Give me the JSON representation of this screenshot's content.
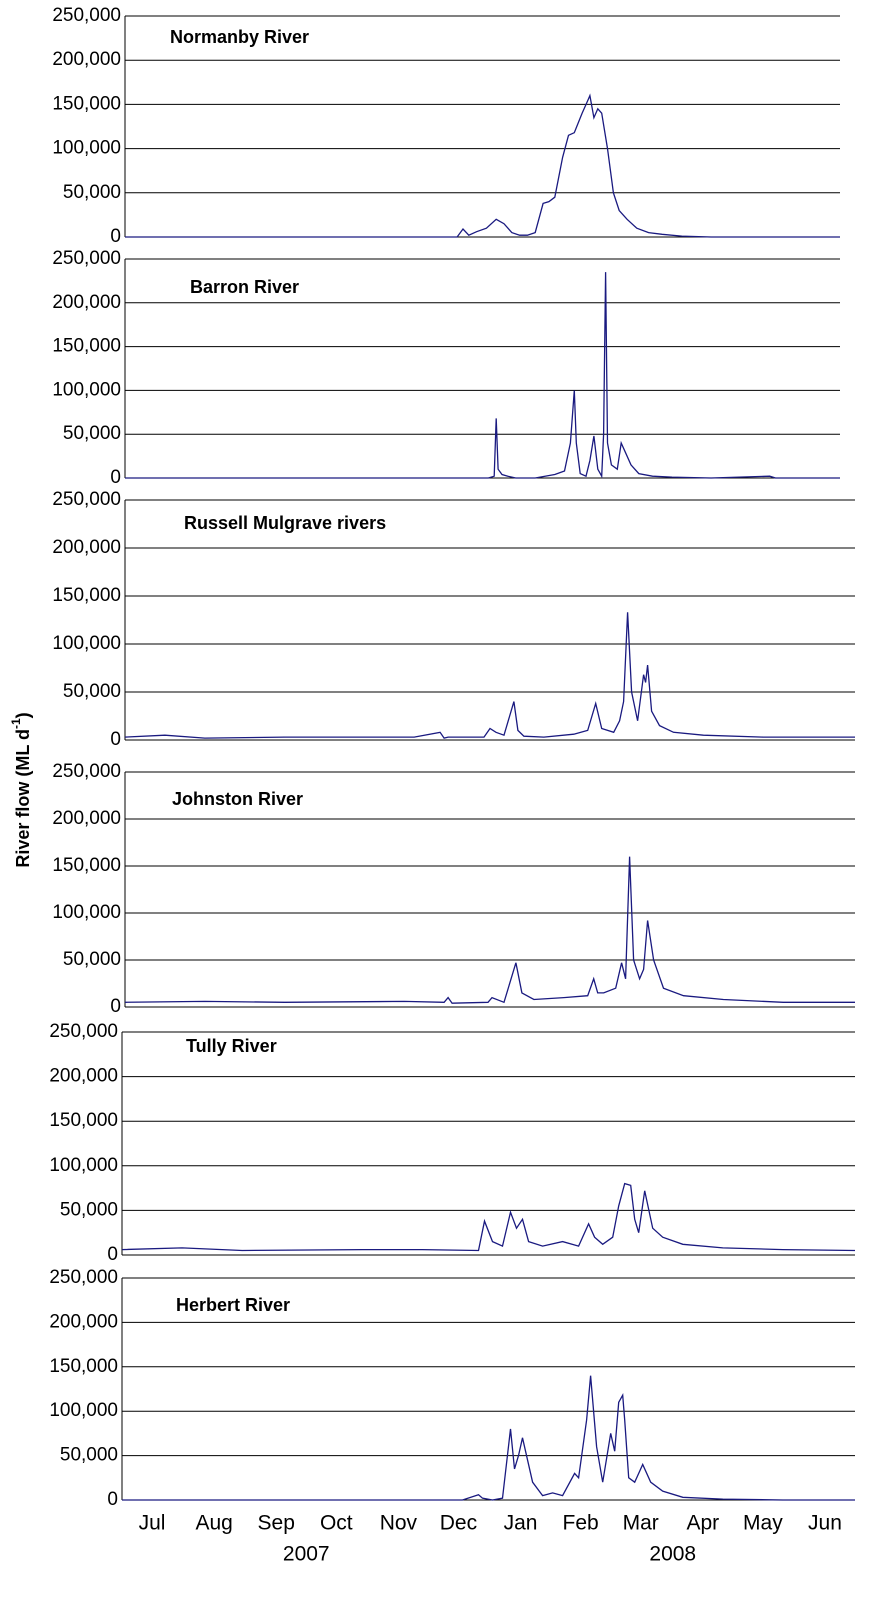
{
  "chart_data": [
    {
      "type": "line",
      "title": "Normanby River",
      "color": "#1a1a80",
      "xlim": [
        0,
        366
      ],
      "ylim": [
        0,
        250000
      ],
      "yticks": [
        0,
        {
          "value": 50000,
          "label": "50,000"
        },
        {
          "value": 100000,
          "label": "100,000"
        },
        {
          "value": 150000,
          "label": "150,000"
        },
        {
          "value": 200000,
          "label": "200,000"
        },
        {
          "value": 250000,
          "label": "250,000"
        }
      ],
      "x": [
        0,
        150,
        170,
        173,
        176,
        180,
        185,
        190,
        194,
        198,
        202,
        206,
        210,
        214,
        217,
        220,
        224,
        227,
        230,
        234,
        237,
        238,
        240,
        242,
        244,
        247,
        250,
        253,
        257,
        262,
        268,
        275,
        285,
        300,
        366
      ],
      "values": [
        0,
        0,
        0,
        9000,
        2000,
        6000,
        10000,
        20000,
        15000,
        5000,
        2000,
        2000,
        5000,
        38000,
        40000,
        45000,
        90000,
        115000,
        118000,
        140000,
        155000,
        160000,
        135000,
        145000,
        140000,
        100000,
        50000,
        30000,
        20000,
        10000,
        5000,
        3000,
        1000,
        0,
        0
      ]
    },
    {
      "type": "line",
      "title": "Barron River",
      "color": "#1a1a80",
      "xlim": [
        0,
        366
      ],
      "ylim": [
        0,
        250000
      ],
      "yticks": [
        0,
        {
          "value": 50000,
          "label": "50,000"
        },
        {
          "value": 100000,
          "label": "100,000"
        },
        {
          "value": 150000,
          "label": "150,000"
        },
        {
          "value": 200000,
          "label": "200,000"
        },
        {
          "value": 250000,
          "label": "250,000"
        }
      ],
      "x": [
        0,
        180,
        186,
        189,
        190,
        191,
        193,
        196,
        200,
        210,
        220,
        225,
        228,
        230,
        231,
        233,
        236,
        238,
        240,
        242,
        244,
        245,
        246,
        247,
        249,
        252,
        254,
        256,
        259,
        263,
        270,
        280,
        300,
        330,
        333,
        366
      ],
      "values": [
        0,
        0,
        0,
        2000,
        68000,
        10000,
        4000,
        2000,
        0,
        0,
        4000,
        8000,
        40000,
        100000,
        40000,
        5000,
        2000,
        20000,
        48000,
        10000,
        2000,
        50000,
        235000,
        40000,
        15000,
        10000,
        40000,
        30000,
        15000,
        5000,
        2000,
        1000,
        0,
        2000,
        0,
        0
      ]
    },
    {
      "type": "line",
      "title": "Russell Mulgrave rivers",
      "color": "#1a1a80",
      "xlim": [
        0,
        366
      ],
      "ylim": [
        0,
        250000
      ],
      "yticks": [
        0,
        {
          "value": 50000,
          "label": "50,000"
        },
        {
          "value": 100000,
          "label": "100,000"
        },
        {
          "value": 150000,
          "label": "150,000"
        },
        {
          "value": 200000,
          "label": "200,000"
        },
        {
          "value": 250000,
          "label": "250,000"
        }
      ],
      "x": [
        0,
        20,
        40,
        80,
        120,
        145,
        158,
        160,
        162,
        180,
        183,
        186,
        190,
        195,
        197,
        200,
        210,
        225,
        232,
        236,
        239,
        245,
        248,
        250,
        252,
        254,
        257,
        260,
        261,
        262,
        264,
        268,
        275,
        290,
        320,
        366
      ],
      "values": [
        3000,
        5000,
        2000,
        3000,
        3000,
        3000,
        8000,
        2000,
        3000,
        3000,
        12000,
        8000,
        5000,
        40000,
        10000,
        4000,
        3000,
        6000,
        10000,
        38000,
        12000,
        8000,
        20000,
        40000,
        133000,
        50000,
        20000,
        68000,
        60000,
        78000,
        30000,
        15000,
        8000,
        5000,
        3000,
        3000
      ]
    },
    {
      "type": "line",
      "title": "Johnston River",
      "color": "#1a1a80",
      "xlim": [
        0,
        366
      ],
      "ylim": [
        0,
        250000
      ],
      "yticks": [
        0,
        {
          "value": 50000,
          "label": "50,000"
        },
        {
          "value": 100000,
          "label": "100,000"
        },
        {
          "value": 150000,
          "label": "150,000"
        },
        {
          "value": 200000,
          "label": "200,000"
        },
        {
          "value": 250000,
          "label": "250,000"
        }
      ],
      "x": [
        0,
        40,
        80,
        140,
        160,
        162,
        164,
        182,
        184,
        190,
        196,
        199,
        205,
        220,
        232,
        235,
        237,
        240,
        246,
        249,
        251,
        253,
        255,
        258,
        260,
        262,
        265,
        270,
        280,
        300,
        330,
        366
      ],
      "values": [
        5000,
        6000,
        5000,
        6000,
        5000,
        10000,
        4000,
        5000,
        10000,
        5000,
        47000,
        15000,
        8000,
        10000,
        12000,
        30000,
        15000,
        15000,
        20000,
        47000,
        30000,
        160000,
        50000,
        30000,
        40000,
        92000,
        50000,
        20000,
        12000,
        8000,
        5000,
        5000
      ]
    },
    {
      "type": "line",
      "title": "Tully River",
      "color": "#1a1a80",
      "xlim": [
        0,
        366
      ],
      "ylim": [
        0,
        250000
      ],
      "yticks": [
        0,
        {
          "value": 50000,
          "label": "50,000"
        },
        {
          "value": 100000,
          "label": "100,000"
        },
        {
          "value": 150000,
          "label": "150,000"
        },
        {
          "value": 200000,
          "label": "200,000"
        },
        {
          "value": 250000,
          "label": "250,000"
        }
      ],
      "x": [
        0,
        30,
        60,
        120,
        150,
        178,
        181,
        185,
        190,
        194,
        197,
        200,
        203,
        210,
        220,
        228,
        233,
        236,
        240,
        245,
        248,
        251,
        254,
        256,
        258,
        261,
        265,
        270,
        280,
        300,
        330,
        366
      ],
      "values": [
        6000,
        8000,
        5000,
        6000,
        6000,
        5000,
        38000,
        15000,
        10000,
        48000,
        30000,
        40000,
        15000,
        10000,
        15000,
        10000,
        35000,
        20000,
        12000,
        20000,
        55000,
        80000,
        78000,
        40000,
        25000,
        72000,
        30000,
        20000,
        12000,
        8000,
        6000,
        5000
      ]
    },
    {
      "type": "line",
      "title": "Herbert River",
      "color": "#1a1a80",
      "xlim": [
        0,
        366
      ],
      "ylim": [
        0,
        250000
      ],
      "yticks": [
        0,
        {
          "value": 50000,
          "label": "50,000"
        },
        {
          "value": 100000,
          "label": "100,000"
        },
        {
          "value": 150000,
          "label": "150,000"
        },
        {
          "value": 200000,
          "label": "200,000"
        },
        {
          "value": 250000,
          "label": "250,000"
        }
      ],
      "x": [
        0,
        170,
        178,
        180,
        185,
        190,
        194,
        196,
        198,
        200,
        205,
        210,
        215,
        220,
        226,
        228,
        232,
        234,
        237,
        240,
        244,
        246,
        248,
        250,
        251,
        253,
        256,
        260,
        264,
        270,
        280,
        300,
        330,
        366
      ],
      "values": [
        0,
        0,
        6000,
        2000,
        0,
        2000,
        80000,
        35000,
        50000,
        70000,
        20000,
        5000,
        8000,
        5000,
        30000,
        25000,
        90000,
        140000,
        60000,
        20000,
        75000,
        55000,
        110000,
        118000,
        90000,
        25000,
        20000,
        40000,
        20000,
        10000,
        3000,
        1000,
        0,
        0
      ],
      "xticks": [
        {
          "value": 15,
          "label": "Jul"
        },
        {
          "value": 46,
          "label": "Aug"
        },
        {
          "value": 77,
          "label": "Sep"
        },
        {
          "value": 107,
          "label": "Oct"
        },
        {
          "value": 138,
          "label": "Nov"
        },
        {
          "value": 168,
          "label": "Dec"
        },
        {
          "value": 199,
          "label": "Jan"
        },
        {
          "value": 229,
          "label": "Feb"
        },
        {
          "value": 259,
          "label": "Mar"
        },
        {
          "value": 290,
          "label": "Apr"
        },
        {
          "value": 320,
          "label": "May"
        },
        {
          "value": 351,
          "label": "Jun"
        }
      ],
      "years": [
        "2007",
        "2008"
      ],
      "ylabel": "River flow (ML d",
      "ylabel_sup": "-1",
      "ylabel_end": ")"
    }
  ]
}
